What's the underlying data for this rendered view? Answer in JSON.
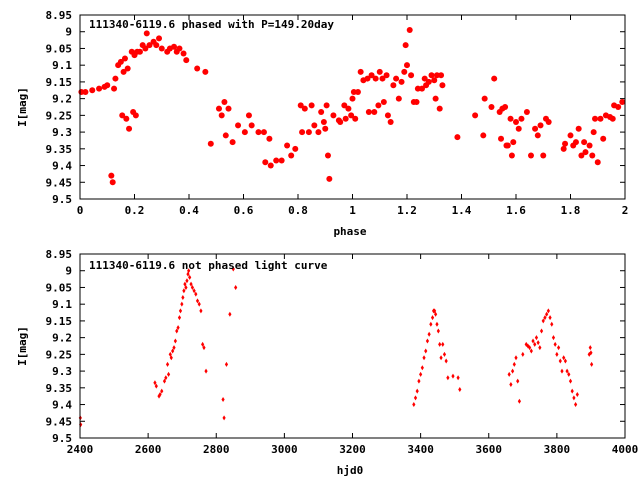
{
  "chart_data": [
    {
      "type": "scatter",
      "title": "111340-6119.6 phased with P=149.20day",
      "xlabel": "phase",
      "ylabel": "I[mag]",
      "xlim": [
        0,
        2
      ],
      "ylim": [
        9.5,
        8.95
      ],
      "y_inverted": true,
      "grid": false,
      "legend": "none",
      "marker": "filled-circle",
      "color": "#ff0000",
      "x_ticks": [
        "0",
        "0.2",
        "0.4",
        "0.6",
        "0.8",
        "1",
        "1.2",
        "1.4",
        "1.6",
        "1.8",
        "2"
      ],
      "y_ticks": [
        "8.95",
        "9",
        "9.05",
        "9.1",
        "9.15",
        "9.2",
        "9.25",
        "9.3",
        "9.35",
        "9.4",
        "9.45",
        "9.5"
      ],
      "x_tick_values": [
        0,
        0.2,
        0.4,
        0.6,
        0.8,
        1.0,
        1.2,
        1.4,
        1.6,
        1.8,
        2.0
      ],
      "y_tick_values": [
        8.95,
        9.0,
        9.05,
        9.1,
        9.15,
        9.2,
        9.25,
        9.3,
        9.35,
        9.4,
        9.45,
        9.5
      ],
      "points": [
        [
          0.005,
          9.18
        ],
        [
          0.02,
          9.18
        ],
        [
          0.045,
          9.175
        ],
        [
          0.07,
          9.17
        ],
        [
          0.09,
          9.165
        ],
        [
          0.1,
          9.16
        ],
        [
          0.115,
          9.43
        ],
        [
          0.12,
          9.45
        ],
        [
          0.125,
          9.17
        ],
        [
          0.13,
          9.14
        ],
        [
          0.14,
          9.1
        ],
        [
          0.15,
          9.09
        ],
        [
          0.155,
          9.25
        ],
        [
          0.16,
          9.12
        ],
        [
          0.165,
          9.08
        ],
        [
          0.17,
          9.26
        ],
        [
          0.175,
          9.11
        ],
        [
          0.18,
          9.29
        ],
        [
          0.19,
          9.06
        ],
        [
          0.195,
          9.24
        ],
        [
          0.2,
          9.07
        ],
        [
          0.205,
          9.25
        ],
        [
          0.21,
          9.06
        ],
        [
          0.22,
          9.06
        ],
        [
          0.23,
          9.04
        ],
        [
          0.24,
          9.05
        ],
        [
          0.245,
          9.005
        ],
        [
          0.255,
          9.04
        ],
        [
          0.27,
          9.03
        ],
        [
          0.28,
          9.04
        ],
        [
          0.29,
          9.02
        ],
        [
          0.3,
          9.05
        ],
        [
          0.32,
          9.06
        ],
        [
          0.33,
          9.05
        ],
        [
          0.345,
          9.045
        ],
        [
          0.355,
          9.06
        ],
        [
          0.365,
          9.05
        ],
        [
          0.38,
          9.065
        ],
        [
          0.39,
          9.085
        ],
        [
          0.43,
          9.11
        ],
        [
          0.46,
          9.12
        ],
        [
          0.48,
          9.335
        ],
        [
          0.51,
          9.23
        ],
        [
          0.52,
          9.25
        ],
        [
          0.53,
          9.21
        ],
        [
          0.535,
          9.31
        ],
        [
          0.545,
          9.23
        ],
        [
          0.56,
          9.33
        ],
        [
          0.58,
          9.28
        ],
        [
          0.605,
          9.3
        ],
        [
          0.62,
          9.25
        ],
        [
          0.63,
          9.28
        ],
        [
          0.655,
          9.3
        ],
        [
          0.675,
          9.3
        ],
        [
          0.68,
          9.39
        ],
        [
          0.695,
          9.32
        ],
        [
          0.7,
          9.4
        ],
        [
          0.72,
          9.385
        ],
        [
          0.74,
          9.385
        ],
        [
          0.76,
          9.34
        ],
        [
          0.775,
          9.37
        ],
        [
          0.79,
          9.35
        ],
        [
          0.81,
          9.22
        ],
        [
          0.815,
          9.3
        ],
        [
          0.825,
          9.23
        ],
        [
          0.84,
          9.3
        ],
        [
          0.85,
          9.22
        ],
        [
          0.86,
          9.28
        ],
        [
          0.875,
          9.3
        ],
        [
          0.885,
          9.24
        ],
        [
          0.895,
          9.27
        ],
        [
          0.9,
          9.29
        ],
        [
          0.905,
          9.22
        ],
        [
          0.91,
          9.37
        ],
        [
          0.915,
          9.44
        ],
        [
          0.93,
          9.25
        ],
        [
          0.95,
          9.265
        ],
        [
          0.955,
          9.27
        ],
        [
          0.97,
          9.22
        ],
        [
          0.975,
          9.26
        ],
        [
          0.985,
          9.23
        ],
        [
          0.995,
          9.25
        ],
        [
          1.0,
          9.2
        ],
        [
          1.005,
          9.18
        ],
        [
          1.01,
          9.26
        ],
        [
          1.02,
          9.18
        ],
        [
          1.03,
          9.12
        ],
        [
          1.04,
          9.145
        ],
        [
          1.055,
          9.14
        ],
        [
          1.06,
          9.24
        ],
        [
          1.07,
          9.13
        ],
        [
          1.08,
          9.24
        ],
        [
          1.085,
          9.14
        ],
        [
          1.095,
          9.22
        ],
        [
          1.1,
          9.12
        ],
        [
          1.11,
          9.14
        ],
        [
          1.115,
          9.21
        ],
        [
          1.125,
          9.13
        ],
        [
          1.13,
          9.25
        ],
        [
          1.14,
          9.27
        ],
        [
          1.15,
          9.16
        ],
        [
          1.16,
          9.14
        ],
        [
          1.17,
          9.2
        ],
        [
          1.18,
          9.15
        ],
        [
          1.19,
          9.12
        ],
        [
          1.195,
          9.04
        ],
        [
          1.2,
          9.1
        ],
        [
          1.21,
          8.995
        ],
        [
          1.215,
          9.13
        ],
        [
          1.225,
          9.21
        ],
        [
          1.235,
          9.21
        ],
        [
          1.24,
          9.17
        ],
        [
          1.255,
          9.17
        ],
        [
          1.265,
          9.14
        ],
        [
          1.27,
          9.16
        ],
        [
          1.28,
          9.15
        ],
        [
          1.29,
          9.13
        ],
        [
          1.3,
          9.145
        ],
        [
          1.305,
          9.2
        ],
        [
          1.31,
          9.13
        ],
        [
          1.32,
          9.23
        ],
        [
          1.325,
          9.13
        ],
        [
          1.33,
          9.16
        ],
        [
          1.385,
          9.315
        ],
        [
          1.45,
          9.25
        ],
        [
          1.48,
          9.31
        ],
        [
          1.485,
          9.2
        ],
        [
          1.51,
          9.225
        ],
        [
          1.52,
          9.14
        ],
        [
          1.54,
          9.24
        ],
        [
          1.545,
          9.32
        ],
        [
          1.55,
          9.23
        ],
        [
          1.56,
          9.225
        ],
        [
          1.565,
          9.34
        ],
        [
          1.57,
          9.34
        ],
        [
          1.58,
          9.26
        ],
        [
          1.585,
          9.37
        ],
        [
          1.59,
          9.33
        ],
        [
          1.6,
          9.27
        ],
        [
          1.61,
          9.29
        ],
        [
          1.62,
          9.26
        ],
        [
          1.64,
          9.24
        ],
        [
          1.655,
          9.37
        ],
        [
          1.67,
          9.29
        ],
        [
          1.68,
          9.31
        ],
        [
          1.69,
          9.28
        ],
        [
          1.7,
          9.37
        ],
        [
          1.71,
          9.26
        ],
        [
          1.72,
          9.27
        ],
        [
          1.775,
          9.35
        ],
        [
          1.78,
          9.335
        ],
        [
          1.8,
          9.31
        ],
        [
          1.81,
          9.34
        ],
        [
          1.82,
          9.33
        ],
        [
          1.83,
          9.29
        ],
        [
          1.84,
          9.37
        ],
        [
          1.85,
          9.33
        ],
        [
          1.855,
          9.36
        ],
        [
          1.87,
          9.34
        ],
        [
          1.88,
          9.37
        ],
        [
          1.885,
          9.3
        ],
        [
          1.89,
          9.26
        ],
        [
          1.9,
          9.39
        ],
        [
          1.91,
          9.26
        ],
        [
          1.92,
          9.32
        ],
        [
          1.93,
          9.25
        ],
        [
          1.945,
          9.255
        ],
        [
          1.955,
          9.26
        ],
        [
          1.96,
          9.22
        ],
        [
          1.975,
          9.225
        ],
        [
          1.99,
          9.21
        ]
      ]
    },
    {
      "type": "scatter",
      "title": "111340-6119.6 not phased light curve",
      "xlabel": "hjd0",
      "ylabel": "I[mag]",
      "xlim": [
        2400,
        4000
      ],
      "ylim": [
        9.5,
        8.95
      ],
      "y_inverted": true,
      "grid": false,
      "legend": "none",
      "marker": "small-diamond",
      "color": "#ff0000",
      "x_ticks": [
        "2400",
        "2600",
        "2800",
        "3000",
        "3200",
        "3400",
        "3600",
        "3800",
        "4000"
      ],
      "y_ticks": [
        "8.95",
        "9",
        "9.05",
        "9.1",
        "9.15",
        "9.2",
        "9.25",
        "9.3",
        "9.35",
        "9.4",
        "9.45",
        "9.5"
      ],
      "x_tick_values": [
        2400,
        2600,
        2800,
        3000,
        3200,
        3400,
        3600,
        3800,
        4000
      ],
      "y_tick_values": [
        8.95,
        9.0,
        9.05,
        9.1,
        9.15,
        9.2,
        9.25,
        9.3,
        9.35,
        9.4,
        9.45,
        9.5
      ],
      "points": [
        [
          2401,
          9.44
        ],
        [
          2402,
          9.46
        ],
        [
          2620,
          9.335
        ],
        [
          2624,
          9.345
        ],
        [
          2632,
          9.375
        ],
        [
          2635,
          9.37
        ],
        [
          2640,
          9.36
        ],
        [
          2648,
          9.33
        ],
        [
          2652,
          9.32
        ],
        [
          2657,
          9.28
        ],
        [
          2660,
          9.31
        ],
        [
          2665,
          9.25
        ],
        [
          2668,
          9.26
        ],
        [
          2672,
          9.24
        ],
        [
          2676,
          9.23
        ],
        [
          2680,
          9.21
        ],
        [
          2684,
          9.18
        ],
        [
          2688,
          9.17
        ],
        [
          2692,
          9.14
        ],
        [
          2695,
          9.12
        ],
        [
          2699,
          9.1
        ],
        [
          2702,
          9.08
        ],
        [
          2705,
          9.06
        ],
        [
          2708,
          9.04
        ],
        [
          2711,
          9.05
        ],
        [
          2714,
          9.03
        ],
        [
          2717,
          9.01
        ],
        [
          2719,
          9.0
        ],
        [
          2722,
          9.02
        ],
        [
          2726,
          9.04
        ],
        [
          2730,
          9.05
        ],
        [
          2735,
          9.06
        ],
        [
          2740,
          9.07
        ],
        [
          2745,
          9.09
        ],
        [
          2750,
          9.1
        ],
        [
          2755,
          9.12
        ],
        [
          2760,
          9.22
        ],
        [
          2764,
          9.23
        ],
        [
          2770,
          9.3
        ],
        [
          2820,
          9.385
        ],
        [
          2823,
          9.44
        ],
        [
          2830,
          9.28
        ],
        [
          2840,
          9.13
        ],
        [
          2850,
          8.995
        ],
        [
          2857,
          9.05
        ],
        [
          3380,
          9.4
        ],
        [
          3385,
          9.38
        ],
        [
          3390,
          9.36
        ],
        [
          3395,
          9.33
        ],
        [
          3400,
          9.31
        ],
        [
          3405,
          9.29
        ],
        [
          3410,
          9.26
        ],
        [
          3415,
          9.24
        ],
        [
          3420,
          9.21
        ],
        [
          3425,
          9.19
        ],
        [
          3430,
          9.16
        ],
        [
          3435,
          9.14
        ],
        [
          3438,
          9.12
        ],
        [
          3441,
          9.12
        ],
        [
          3444,
          9.13
        ],
        [
          3448,
          9.16
        ],
        [
          3452,
          9.18
        ],
        [
          3456,
          9.22
        ],
        [
          3460,
          9.26
        ],
        [
          3465,
          9.22
        ],
        [
          3470,
          9.25
        ],
        [
          3475,
          9.27
        ],
        [
          3480,
          9.32
        ],
        [
          3495,
          9.315
        ],
        [
          3510,
          9.32
        ],
        [
          3515,
          9.355
        ],
        [
          3660,
          9.31
        ],
        [
          3665,
          9.34
        ],
        [
          3670,
          9.3
        ],
        [
          3675,
          9.28
        ],
        [
          3680,
          9.26
        ],
        [
          3685,
          9.33
        ],
        [
          3690,
          9.39
        ],
        [
          3700,
          9.25
        ],
        [
          3710,
          9.22
        ],
        [
          3715,
          9.225
        ],
        [
          3720,
          9.23
        ],
        [
          3725,
          9.24
        ],
        [
          3730,
          9.21
        ],
        [
          3735,
          9.22
        ],
        [
          3740,
          9.2
        ],
        [
          3745,
          9.215
        ],
        [
          3750,
          9.23
        ],
        [
          3755,
          9.18
        ],
        [
          3760,
          9.15
        ],
        [
          3765,
          9.14
        ],
        [
          3770,
          9.13
        ],
        [
          3775,
          9.12
        ],
        [
          3780,
          9.14
        ],
        [
          3785,
          9.16
        ],
        [
          3790,
          9.2
        ],
        [
          3795,
          9.22
        ],
        [
          3800,
          9.25
        ],
        [
          3805,
          9.23
        ],
        [
          3810,
          9.27
        ],
        [
          3815,
          9.3
        ],
        [
          3820,
          9.26
        ],
        [
          3825,
          9.27
        ],
        [
          3830,
          9.3
        ],
        [
          3835,
          9.31
        ],
        [
          3840,
          9.33
        ],
        [
          3845,
          9.36
        ],
        [
          3850,
          9.38
        ],
        [
          3855,
          9.4
        ],
        [
          3860,
          9.37
        ],
        [
          3895,
          9.25
        ],
        [
          3898,
          9.23
        ],
        [
          3900,
          9.245
        ],
        [
          3902,
          9.28
        ]
      ]
    }
  ]
}
